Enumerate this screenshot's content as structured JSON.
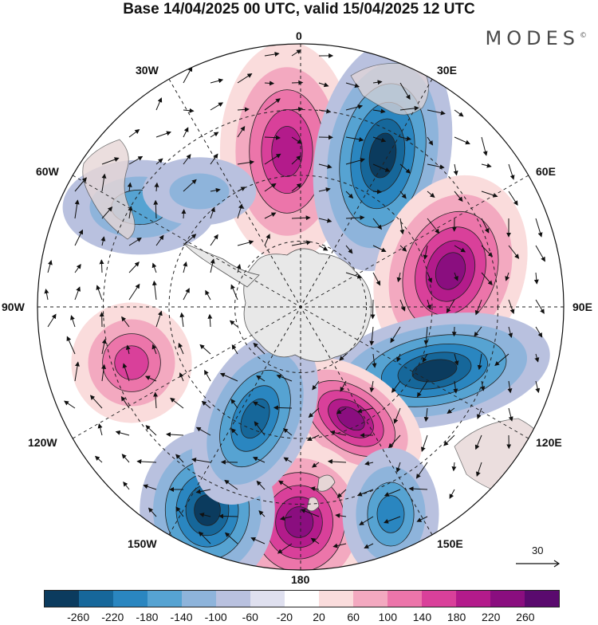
{
  "title": "Base 14/04/2025 00 UTC, valid 15/04/2025 12 UTC",
  "brand": "MODES",
  "brand_mark": "©",
  "map": {
    "projection": "south-polar-stereographic",
    "longitude_labels": {
      "top": "0",
      "top_right": "30E",
      "right_upper": "60E",
      "right": "90E",
      "right_lower": "120E",
      "bottom_right": "150E",
      "bottom": "180",
      "bottom_left": "150W",
      "left_lower": "120W",
      "left": "90W",
      "left_upper": "60W",
      "top_left": "30W"
    },
    "reference_vector": "30",
    "anomaly_features": [
      {
        "sign": "positive",
        "sector": "0",
        "magnitude": 180
      },
      {
        "sign": "negative",
        "sector": "30E",
        "magnitude": -220
      },
      {
        "sign": "positive",
        "sector": "60E-90E",
        "magnitude": 220
      },
      {
        "sign": "negative",
        "sector": "90E-120E",
        "magnitude": -220
      },
      {
        "sign": "positive",
        "sector": "150E-180",
        "magnitude": 220
      },
      {
        "sign": "positive",
        "sector": "180",
        "magnitude": 220
      },
      {
        "sign": "negative",
        "sector": "150E",
        "magnitude": -140
      },
      {
        "sign": "negative",
        "sector": "150W",
        "magnitude": -220
      },
      {
        "sign": "negative",
        "sector": "150W-120W",
        "magnitude": -180
      },
      {
        "sign": "positive",
        "sector": "90W-120W",
        "magnitude": 140
      },
      {
        "sign": "negative",
        "sector": "60W",
        "magnitude": -100
      },
      {
        "sign": "negative",
        "sector": "30W-60W",
        "magnitude": -60
      }
    ]
  },
  "colorbar": {
    "colors": [
      "#0b3b5e",
      "#16679a",
      "#2a86c0",
      "#56a3d2",
      "#8eb4db",
      "#b9c1df",
      "#dfe0ef",
      "#ffffff",
      "#fadcdc",
      "#f3a9c0",
      "#ec75aa",
      "#d9409a",
      "#b31b8b",
      "#8a0e7f",
      "#5a0a6e"
    ],
    "tick_labels": [
      "-260",
      "-220",
      "-180",
      "-140",
      "-100",
      "-60",
      "-20",
      "20",
      "60",
      "100",
      "140",
      "180",
      "220",
      "260"
    ]
  }
}
